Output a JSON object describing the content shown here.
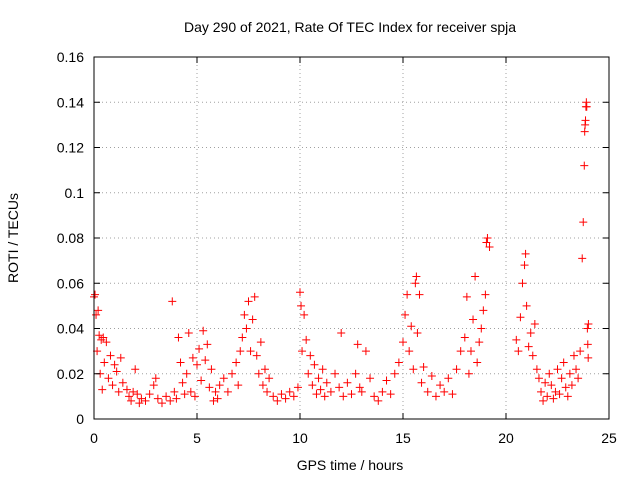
{
  "chart_data": {
    "type": "scatter",
    "title": "Day 290 of 2021, Rate Of TEC Index for receiver spja",
    "xlabel": "GPS time / hours",
    "ylabel": "ROTI / TECUs",
    "xlim": [
      0,
      25
    ],
    "ylim": [
      0,
      0.16
    ],
    "xticks": [
      0,
      5,
      10,
      15,
      20,
      25
    ],
    "yticks": [
      0,
      0.02,
      0.04,
      0.06,
      0.08,
      0.1,
      0.12,
      0.14,
      0.16
    ],
    "xtick_labels": [
      "0",
      "5",
      "10",
      "15",
      "20",
      "25"
    ],
    "ytick_labels": [
      "0",
      "0.02",
      "0.04",
      "0.06",
      "0.08",
      "0.1",
      "0.12",
      "0.14",
      "0.16"
    ],
    "grid": true,
    "marker": "plus",
    "color": "#ff0000",
    "series": [
      {
        "name": "ROTI",
        "points": [
          [
            0.0,
            0.054
          ],
          [
            0.05,
            0.055
          ],
          [
            0.1,
            0.046
          ],
          [
            0.15,
            0.03
          ],
          [
            0.2,
            0.048
          ],
          [
            0.25,
            0.037
          ],
          [
            0.3,
            0.02
          ],
          [
            0.35,
            0.035
          ],
          [
            0.4,
            0.013
          ],
          [
            0.45,
            0.036
          ],
          [
            0.5,
            0.025
          ],
          [
            0.6,
            0.034
          ],
          [
            0.7,
            0.018
          ],
          [
            0.8,
            0.028
          ],
          [
            0.9,
            0.015
          ],
          [
            1.0,
            0.024
          ],
          [
            1.1,
            0.021
          ],
          [
            1.2,
            0.012
          ],
          [
            1.3,
            0.027
          ],
          [
            1.4,
            0.016
          ],
          [
            1.6,
            0.013
          ],
          [
            1.7,
            0.01
          ],
          [
            1.8,
            0.008
          ],
          [
            1.9,
            0.012
          ],
          [
            2.0,
            0.022
          ],
          [
            2.1,
            0.011
          ],
          [
            2.2,
            0.007
          ],
          [
            2.3,
            0.009
          ],
          [
            2.5,
            0.008
          ],
          [
            2.7,
            0.011
          ],
          [
            2.9,
            0.015
          ],
          [
            3.0,
            0.018
          ],
          [
            3.1,
            0.009
          ],
          [
            3.3,
            0.007
          ],
          [
            3.5,
            0.01
          ],
          [
            3.7,
            0.008
          ],
          [
            3.8,
            0.052
          ],
          [
            3.9,
            0.012
          ],
          [
            4.0,
            0.009
          ],
          [
            4.1,
            0.036
          ],
          [
            4.2,
            0.025
          ],
          [
            4.3,
            0.016
          ],
          [
            4.4,
            0.011
          ],
          [
            4.5,
            0.02
          ],
          [
            4.6,
            0.038
          ],
          [
            4.7,
            0.012
          ],
          [
            4.8,
            0.027
          ],
          [
            4.9,
            0.01
          ],
          [
            5.0,
            0.024
          ],
          [
            5.1,
            0.031
          ],
          [
            5.2,
            0.017
          ],
          [
            5.3,
            0.039
          ],
          [
            5.4,
            0.026
          ],
          [
            5.5,
            0.033
          ],
          [
            5.6,
            0.014
          ],
          [
            5.7,
            0.022
          ],
          [
            5.8,
            0.008
          ],
          [
            5.9,
            0.012
          ],
          [
            6.0,
            0.009
          ],
          [
            6.1,
            0.015
          ],
          [
            6.3,
            0.018
          ],
          [
            6.5,
            0.012
          ],
          [
            6.7,
            0.02
          ],
          [
            6.9,
            0.025
          ],
          [
            7.0,
            0.015
          ],
          [
            7.1,
            0.03
          ],
          [
            7.2,
            0.036
          ],
          [
            7.3,
            0.046
          ],
          [
            7.4,
            0.04
          ],
          [
            7.5,
            0.052
          ],
          [
            7.6,
            0.03
          ],
          [
            7.7,
            0.044
          ],
          [
            7.8,
            0.054
          ],
          [
            7.9,
            0.028
          ],
          [
            8.0,
            0.02
          ],
          [
            8.1,
            0.034
          ],
          [
            8.2,
            0.015
          ],
          [
            8.3,
            0.022
          ],
          [
            8.4,
            0.012
          ],
          [
            8.5,
            0.018
          ],
          [
            8.7,
            0.01
          ],
          [
            8.9,
            0.008
          ],
          [
            9.1,
            0.011
          ],
          [
            9.3,
            0.009
          ],
          [
            9.5,
            0.012
          ],
          [
            9.7,
            0.01
          ],
          [
            9.9,
            0.014
          ],
          [
            10.0,
            0.056
          ],
          [
            10.05,
            0.05
          ],
          [
            10.1,
            0.03
          ],
          [
            10.2,
            0.046
          ],
          [
            10.3,
            0.035
          ],
          [
            10.4,
            0.02
          ],
          [
            10.5,
            0.028
          ],
          [
            10.6,
            0.015
          ],
          [
            10.7,
            0.024
          ],
          [
            10.8,
            0.011
          ],
          [
            10.9,
            0.018
          ],
          [
            11.0,
            0.013
          ],
          [
            11.1,
            0.022
          ],
          [
            11.2,
            0.01
          ],
          [
            11.3,
            0.016
          ],
          [
            11.5,
            0.012
          ],
          [
            11.7,
            0.02
          ],
          [
            11.9,
            0.014
          ],
          [
            12.0,
            0.038
          ],
          [
            12.1,
            0.01
          ],
          [
            12.3,
            0.016
          ],
          [
            12.5,
            0.011
          ],
          [
            12.7,
            0.02
          ],
          [
            12.8,
            0.033
          ],
          [
            12.9,
            0.014
          ],
          [
            13.0,
            0.012
          ],
          [
            13.2,
            0.03
          ],
          [
            13.4,
            0.018
          ],
          [
            13.6,
            0.01
          ],
          [
            13.8,
            0.008
          ],
          [
            14.0,
            0.012
          ],
          [
            14.2,
            0.017
          ],
          [
            14.4,
            0.011
          ],
          [
            14.6,
            0.02
          ],
          [
            14.8,
            0.025
          ],
          [
            15.0,
            0.034
          ],
          [
            15.1,
            0.046
          ],
          [
            15.2,
            0.055
          ],
          [
            15.3,
            0.03
          ],
          [
            15.4,
            0.041
          ],
          [
            15.5,
            0.022
          ],
          [
            15.6,
            0.06
          ],
          [
            15.65,
            0.063
          ],
          [
            15.7,
            0.038
          ],
          [
            15.8,
            0.055
          ],
          [
            15.9,
            0.016
          ],
          [
            16.0,
            0.023
          ],
          [
            16.2,
            0.012
          ],
          [
            16.4,
            0.019
          ],
          [
            16.6,
            0.01
          ],
          [
            16.8,
            0.015
          ],
          [
            17.0,
            0.012
          ],
          [
            17.2,
            0.018
          ],
          [
            17.4,
            0.011
          ],
          [
            17.6,
            0.022
          ],
          [
            17.8,
            0.03
          ],
          [
            18.0,
            0.036
          ],
          [
            18.1,
            0.054
          ],
          [
            18.2,
            0.02
          ],
          [
            18.3,
            0.03
          ],
          [
            18.4,
            0.044
          ],
          [
            18.5,
            0.063
          ],
          [
            18.6,
            0.025
          ],
          [
            18.7,
            0.034
          ],
          [
            18.8,
            0.04
          ],
          [
            18.9,
            0.048
          ],
          [
            19.0,
            0.055
          ],
          [
            19.05,
            0.078
          ],
          [
            19.1,
            0.08
          ],
          [
            19.2,
            0.076
          ],
          [
            20.5,
            0.035
          ],
          [
            20.6,
            0.03
          ],
          [
            20.7,
            0.045
          ],
          [
            20.8,
            0.06
          ],
          [
            20.9,
            0.068
          ],
          [
            20.95,
            0.073
          ],
          [
            21.0,
            0.05
          ],
          [
            21.1,
            0.032
          ],
          [
            21.2,
            0.038
          ],
          [
            21.3,
            0.028
          ],
          [
            21.4,
            0.042
          ],
          [
            21.5,
            0.022
          ],
          [
            21.6,
            0.018
          ],
          [
            21.7,
            0.012
          ],
          [
            21.8,
            0.008
          ],
          [
            21.9,
            0.016
          ],
          [
            22.0,
            0.01
          ],
          [
            22.1,
            0.02
          ],
          [
            22.2,
            0.015
          ],
          [
            22.3,
            0.009
          ],
          [
            22.4,
            0.012
          ],
          [
            22.5,
            0.022
          ],
          [
            22.6,
            0.011
          ],
          [
            22.7,
            0.018
          ],
          [
            22.8,
            0.025
          ],
          [
            22.9,
            0.014
          ],
          [
            23.0,
            0.01
          ],
          [
            23.1,
            0.02
          ],
          [
            23.2,
            0.015
          ],
          [
            23.3,
            0.028
          ],
          [
            23.4,
            0.022
          ],
          [
            23.5,
            0.018
          ],
          [
            23.6,
            0.03
          ],
          [
            23.7,
            0.071
          ],
          [
            23.75,
            0.087
          ],
          [
            23.8,
            0.112
          ],
          [
            23.82,
            0.127
          ],
          [
            23.84,
            0.13
          ],
          [
            23.86,
            0.132
          ],
          [
            23.88,
            0.138
          ],
          [
            23.9,
            0.14
          ],
          [
            23.92,
            0.138
          ],
          [
            23.95,
            0.04
          ],
          [
            24.0,
            0.042
          ],
          [
            23.97,
            0.033
          ],
          [
            23.99,
            0.027
          ]
        ]
      }
    ]
  }
}
